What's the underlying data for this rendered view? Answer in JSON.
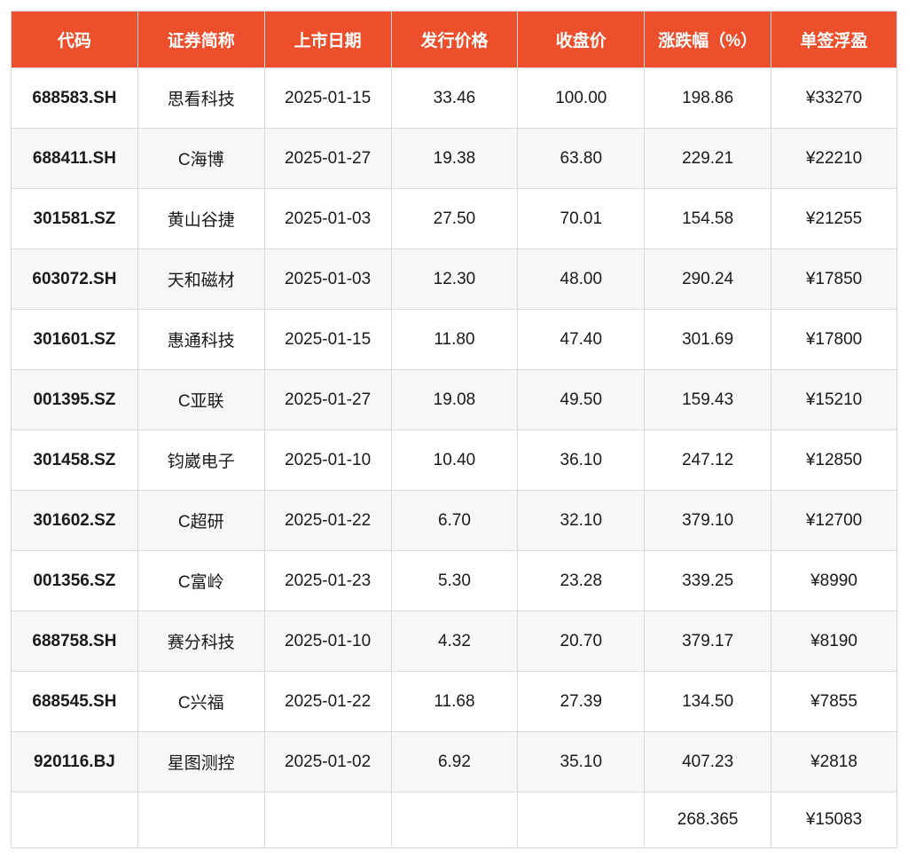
{
  "table": {
    "type": "table",
    "header_bg": "#ed4f2c",
    "header_fg": "#ffffff",
    "border_color": "#d9d9d9",
    "row_odd_bg": "#ffffff",
    "row_even_bg": "#f7f7f7",
    "cell_fg": "#1a1a1a",
    "header_fontsize_pt": 14,
    "cell_fontsize_pt": 14,
    "col_widths_pct": [
      14.3,
      14.3,
      14.3,
      14.3,
      14.3,
      14.3,
      14.2
    ],
    "columns": [
      "代码",
      "证券简称",
      "上市日期",
      "发行价格",
      "收盘价",
      "涨跌幅（%）",
      "单签浮盈"
    ],
    "rows": [
      [
        "688583.SH",
        "思看科技",
        "2025-01-15",
        "33.46",
        "100.00",
        "198.86",
        "¥33270"
      ],
      [
        "688411.SH",
        "C海博",
        "2025-01-27",
        "19.38",
        "63.80",
        "229.21",
        "¥22210"
      ],
      [
        "301581.SZ",
        "黄山谷捷",
        "2025-01-03",
        "27.50",
        "70.01",
        "154.58",
        "¥21255"
      ],
      [
        "603072.SH",
        "天和磁材",
        "2025-01-03",
        "12.30",
        "48.00",
        "290.24",
        "¥17850"
      ],
      [
        "301601.SZ",
        "惠通科技",
        "2025-01-15",
        "11.80",
        "47.40",
        "301.69",
        "¥17800"
      ],
      [
        "001395.SZ",
        "C亚联",
        "2025-01-27",
        "19.08",
        "49.50",
        "159.43",
        "¥15210"
      ],
      [
        "301458.SZ",
        "钧崴电子",
        "2025-01-10",
        "10.40",
        "36.10",
        "247.12",
        "¥12850"
      ],
      [
        "301602.SZ",
        "C超研",
        "2025-01-22",
        "6.70",
        "32.10",
        "379.10",
        "¥12700"
      ],
      [
        "001356.SZ",
        "C富岭",
        "2025-01-23",
        "5.30",
        "23.28",
        "339.25",
        "¥8990"
      ],
      [
        "688758.SH",
        "赛分科技",
        "2025-01-10",
        "4.32",
        "20.70",
        "379.17",
        "¥8190"
      ],
      [
        "688545.SH",
        "C兴福",
        "2025-01-22",
        "11.68",
        "27.39",
        "134.50",
        "¥7855"
      ],
      [
        "920116.BJ",
        "星图测控",
        "2025-01-02",
        "6.92",
        "35.10",
        "407.23",
        "¥2818"
      ]
    ],
    "footer": [
      "",
      "",
      "",
      "",
      "",
      "268.365",
      "¥15083"
    ]
  }
}
